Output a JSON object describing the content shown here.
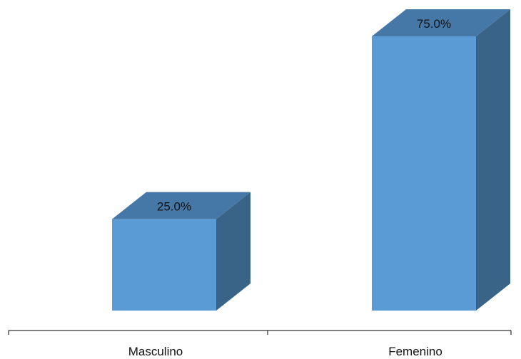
{
  "chart_data": {
    "type": "bar",
    "categories": [
      "Masculino",
      "Femenino"
    ],
    "values": [
      25.0,
      75.0
    ],
    "data_labels": [
      "25.0%",
      "75.0%"
    ],
    "title": "",
    "xlabel": "",
    "ylabel": "",
    "ylim": [
      0,
      75
    ],
    "grid": false,
    "legend": "none",
    "style": "3d-column"
  },
  "colors": {
    "front": "#5b9bd5",
    "top": "#4678a7",
    "side": "#3a6487",
    "axis": "#000000"
  }
}
